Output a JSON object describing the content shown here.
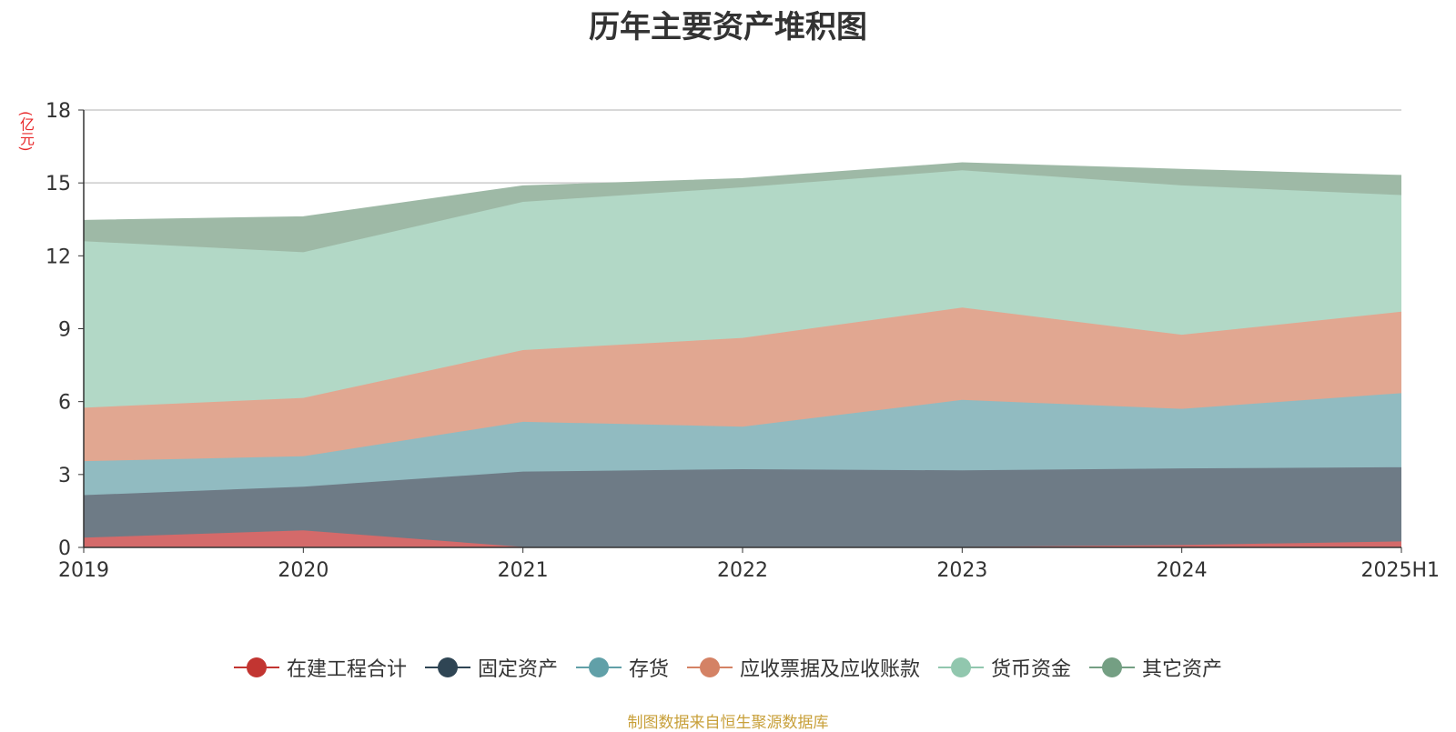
{
  "chart_data": {
    "type": "area",
    "stacked": true,
    "title": "历年主要资产堆积图",
    "unit_label": "(亿元)",
    "categories": [
      "2019",
      "2020",
      "2021",
      "2022",
      "2023",
      "2024",
      "2025H1"
    ],
    "ylim": [
      0,
      18
    ],
    "yticks": [
      "0",
      "3",
      "6",
      "9",
      "12",
      "15",
      "18"
    ],
    "grid": true,
    "legend_position": "bottom",
    "series": [
      {
        "name": "在建工程合计",
        "color": "#c23531",
        "fill": "#d46a6a",
        "values": [
          0.4,
          0.7,
          0.02,
          0.02,
          0.02,
          0.1,
          0.25
        ]
      },
      {
        "name": "固定资产",
        "color": "#2f4554",
        "fill": "#6e7b86",
        "values": [
          1.75,
          1.8,
          3.1,
          3.2,
          3.15,
          3.15,
          3.05
        ]
      },
      {
        "name": "存货",
        "color": "#61a0a8",
        "fill": "#91bbc1",
        "values": [
          1.4,
          1.25,
          2.05,
          1.75,
          2.9,
          2.45,
          3.05
        ]
      },
      {
        "name": "应收票据及应收账款",
        "color": "#d48265",
        "fill": "#e1a791",
        "values": [
          2.2,
          2.4,
          2.95,
          3.65,
          3.8,
          3.05,
          3.35
        ]
      },
      {
        "name": "货币资金",
        "color": "#91c7ae",
        "fill": "#b2d8c6",
        "values": [
          6.85,
          6.0,
          6.1,
          6.2,
          5.65,
          6.15,
          4.8
        ]
      },
      {
        "name": "其它资产",
        "color": "#749f83",
        "fill": "#9eb9a6",
        "values": [
          0.85,
          1.45,
          0.65,
          0.35,
          0.3,
          0.65,
          0.8
        ]
      }
    ]
  },
  "source_note": "制图数据来自恒生聚源数据库"
}
